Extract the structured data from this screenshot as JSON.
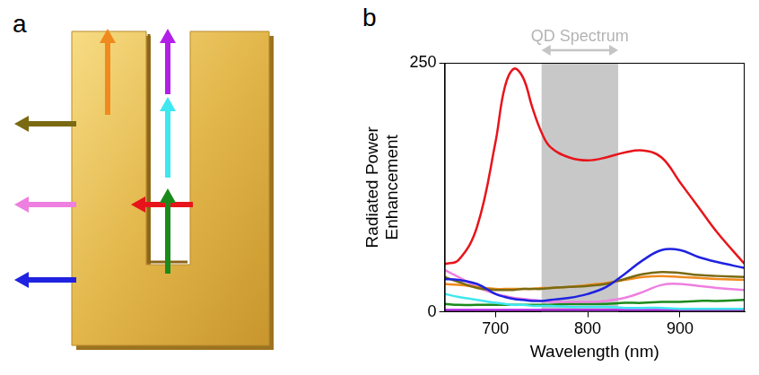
{
  "panel_letters": [
    "a",
    "b"
  ],
  "chart_data": {
    "type": "line",
    "x_label": "Wavelength (nm)",
    "y_label": [
      "Radiated Power",
      "Enhancement"
    ],
    "x": [
      645,
      660,
      680,
      700,
      710,
      720,
      730,
      740,
      750,
      760,
      780,
      800,
      820,
      840,
      860,
      880,
      900,
      920,
      940,
      970
    ],
    "series": [
      {
        "color": "#e8141b",
        "values": [
          48,
          52,
          85,
          170,
          225,
          244,
          235,
          205,
          180,
          165,
          155,
          152,
          155,
          160,
          162,
          155,
          130,
          105,
          80,
          48
        ]
      },
      {
        "color": "#1f22e0",
        "values": [
          33,
          32,
          28,
          18,
          15,
          13,
          12,
          11,
          11,
          12,
          14,
          18,
          25,
          38,
          52,
          62,
          62,
          55,
          50,
          44
        ]
      },
      {
        "color": "#7a6a12",
        "values": [
          35,
          30,
          24,
          22,
          22,
          22,
          23,
          23,
          23,
          24,
          25,
          26,
          28,
          33,
          38,
          40,
          39,
          37,
          36,
          35
        ]
      },
      {
        "color": "#f08a1e",
        "values": [
          28,
          27,
          25,
          23,
          23,
          23,
          23,
          23,
          24,
          24,
          25,
          27,
          29,
          32,
          35,
          36,
          35,
          34,
          33,
          32
        ]
      },
      {
        "color": "#ee7fe0",
        "values": [
          42,
          35,
          25,
          18,
          16,
          14,
          13,
          12,
          11,
          10,
          10,
          10,
          11,
          14,
          20,
          27,
          28,
          26,
          24,
          22
        ]
      },
      {
        "color": "#3fe7f0",
        "values": [
          18,
          15,
          12,
          9,
          8,
          7,
          7,
          6,
          6,
          6,
          5,
          5,
          5,
          4,
          4,
          4,
          3,
          3,
          3,
          3
        ]
      },
      {
        "color": "#1b8a1b",
        "values": [
          8,
          7,
          7,
          7,
          7,
          7,
          7,
          7,
          7,
          7,
          8,
          8,
          8,
          9,
          9,
          10,
          10,
          11,
          11,
          12
        ]
      },
      {
        "color": "#b21fe8",
        "values": [
          2,
          2,
          2,
          2,
          2,
          2,
          2,
          2,
          2,
          2,
          2,
          2,
          2,
          2,
          2,
          2,
          2,
          2,
          2,
          2
        ]
      }
    ],
    "xlim": [
      645,
      970
    ],
    "xticks": [
      700,
      800,
      900
    ],
    "ylim": [
      0,
      250
    ],
    "yticks": [
      0,
      250
    ],
    "grid": false,
    "annotations": [
      {
        "type": "band",
        "x": [
          750,
          833
        ],
        "text": "QD Spectrum",
        "color": "#c8c8c8"
      }
    ]
  }
}
